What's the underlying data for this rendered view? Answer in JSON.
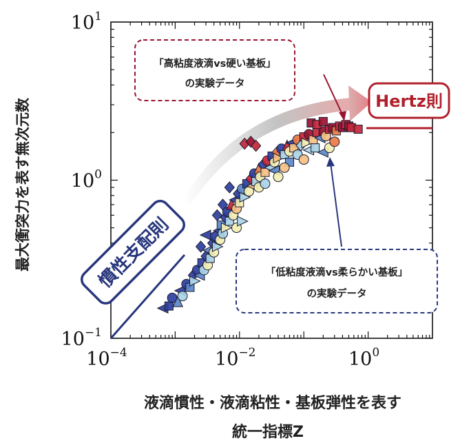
{
  "chart_data": {
    "type": "scatter",
    "xlabel_line1": "液滴慣性・液滴粘性・基板弾性を表す",
    "xlabel_line2": "統一指標Z",
    "ylabel": "最大衝突力を表す無次元数",
    "xscale": "log",
    "yscale": "log",
    "xlim": [
      0.0001,
      10
    ],
    "ylim": [
      0.1,
      10
    ],
    "x_ticks": [
      {
        "value": 0.0001,
        "base": "10",
        "exp": "−4"
      },
      {
        "value": 0.01,
        "base": "10",
        "exp": "−2"
      },
      {
        "value": 1,
        "base": "10",
        "exp": "0"
      }
    ],
    "y_ticks": [
      {
        "value": 0.1,
        "base": "10",
        "exp": "−1"
      },
      {
        "value": 1,
        "base": "10",
        "exp": "0"
      },
      {
        "value": 10,
        "base": "10",
        "exp": "1"
      }
    ],
    "legend": "none",
    "colors": {
      "dark_blue": "#2e3f9e",
      "mid_blue": "#5b88c9",
      "light_blue": "#a9d3e6",
      "pale_yellow": "#f3efb4",
      "light_orange": "#f6c184",
      "orange": "#ea7a45",
      "red": "#c4273a",
      "dark_red": "#9a1230"
    },
    "annotations": {
      "hertz_label": "Hertz則",
      "inertia_label": "慣性支配則",
      "top_box_line1": "「高粘度液滴vs硬い基板」",
      "top_box_line2": "の実験データ",
      "bottom_box_line1": "「低粘度液滴vs柔らかい基板」",
      "bottom_box_line2": "の実験データ"
    },
    "points": [
      {
        "x": 0.00065,
        "y": 0.155,
        "c": "dark_blue",
        "m": "tri_left"
      },
      {
        "x": 0.0008,
        "y": 0.16,
        "c": "dark_blue",
        "m": "square"
      },
      {
        "x": 0.0009,
        "y": 0.18,
        "c": "dark_blue",
        "m": "circle"
      },
      {
        "x": 0.0011,
        "y": 0.17,
        "c": "mid_blue",
        "m": "tri_up"
      },
      {
        "x": 0.0012,
        "y": 0.2,
        "c": "dark_blue",
        "m": "tri_left"
      },
      {
        "x": 0.0013,
        "y": 0.185,
        "c": "light_blue",
        "m": "circle"
      },
      {
        "x": 0.0015,
        "y": 0.22,
        "c": "dark_blue",
        "m": "circle"
      },
      {
        "x": 0.0017,
        "y": 0.21,
        "c": "mid_blue",
        "m": "square"
      },
      {
        "x": 0.0019,
        "y": 0.25,
        "c": "dark_blue",
        "m": "diamond"
      },
      {
        "x": 0.002,
        "y": 0.23,
        "c": "light_blue",
        "m": "tri_right"
      },
      {
        "x": 0.0022,
        "y": 0.27,
        "c": "dark_blue",
        "m": "circle"
      },
      {
        "x": 0.0024,
        "y": 0.25,
        "c": "mid_blue",
        "m": "tri_left"
      },
      {
        "x": 0.0026,
        "y": 0.3,
        "c": "dark_blue",
        "m": "square"
      },
      {
        "x": 0.0028,
        "y": 0.27,
        "c": "light_blue",
        "m": "circle"
      },
      {
        "x": 0.003,
        "y": 0.33,
        "c": "dark_blue",
        "m": "diamond"
      },
      {
        "x": 0.0032,
        "y": 0.29,
        "c": "pale_yellow",
        "m": "circle"
      },
      {
        "x": 0.0033,
        "y": 0.36,
        "c": "mid_blue",
        "m": "tri_left"
      },
      {
        "x": 0.0035,
        "y": 0.32,
        "c": "light_blue",
        "m": "square"
      },
      {
        "x": 0.0038,
        "y": 0.4,
        "c": "dark_blue",
        "m": "diamond"
      },
      {
        "x": 0.004,
        "y": 0.35,
        "c": "pale_yellow",
        "m": "circle"
      },
      {
        "x": 0.0042,
        "y": 0.44,
        "c": "dark_blue",
        "m": "circle"
      },
      {
        "x": 0.0045,
        "y": 0.38,
        "c": "light_blue",
        "m": "tri_right"
      },
      {
        "x": 0.0048,
        "y": 0.48,
        "c": "dark_blue",
        "m": "tri_left"
      },
      {
        "x": 0.005,
        "y": 0.42,
        "c": "pale_yellow",
        "m": "circle"
      },
      {
        "x": 0.0052,
        "y": 0.52,
        "c": "mid_blue",
        "m": "square"
      },
      {
        "x": 0.0055,
        "y": 0.46,
        "c": "light_blue",
        "m": "circle"
      },
      {
        "x": 0.006,
        "y": 0.58,
        "c": "dark_blue",
        "m": "diamond"
      },
      {
        "x": 0.0062,
        "y": 0.5,
        "c": "pale_yellow",
        "m": "tri_right"
      },
      {
        "x": 0.0065,
        "y": 0.63,
        "c": "dark_blue",
        "m": "circle"
      },
      {
        "x": 0.007,
        "y": 0.55,
        "c": "light_blue",
        "m": "square"
      },
      {
        "x": 0.0075,
        "y": 0.7,
        "c": "red",
        "m": "tri_up"
      },
      {
        "x": 0.008,
        "y": 0.6,
        "c": "pale_yellow",
        "m": "circle"
      },
      {
        "x": 0.0085,
        "y": 0.75,
        "c": "dark_blue",
        "m": "tri_left"
      },
      {
        "x": 0.009,
        "y": 0.66,
        "c": "light_orange",
        "m": "circle"
      },
      {
        "x": 0.0095,
        "y": 0.82,
        "c": "dark_blue",
        "m": "diamond"
      },
      {
        "x": 0.01,
        "y": 0.72,
        "c": "pale_yellow",
        "m": "square"
      },
      {
        "x": 0.011,
        "y": 0.88,
        "c": "mid_blue",
        "m": "circle"
      },
      {
        "x": 0.012,
        "y": 0.78,
        "c": "light_blue",
        "m": "tri_right"
      },
      {
        "x": 0.013,
        "y": 0.95,
        "c": "dark_blue",
        "m": "square"
      },
      {
        "x": 0.014,
        "y": 0.85,
        "c": "pale_yellow",
        "m": "circle"
      },
      {
        "x": 0.015,
        "y": 1.02,
        "c": "red",
        "m": "diamond"
      },
      {
        "x": 0.016,
        "y": 0.92,
        "c": "light_orange",
        "m": "tri_left"
      },
      {
        "x": 0.017,
        "y": 1.1,
        "c": "dark_blue",
        "m": "circle"
      },
      {
        "x": 0.018,
        "y": 0.98,
        "c": "light_blue",
        "m": "square"
      },
      {
        "x": 0.02,
        "y": 1.18,
        "c": "orange",
        "m": "tri_up"
      },
      {
        "x": 0.021,
        "y": 1.05,
        "c": "pale_yellow",
        "m": "circle"
      },
      {
        "x": 0.023,
        "y": 1.25,
        "c": "dark_blue",
        "m": "diamond"
      },
      {
        "x": 0.025,
        "y": 1.12,
        "c": "light_orange",
        "m": "square"
      },
      {
        "x": 0.027,
        "y": 1.33,
        "c": "red",
        "m": "circle"
      },
      {
        "x": 0.03,
        "y": 1.2,
        "c": "light_blue",
        "m": "tri_left"
      },
      {
        "x": 0.032,
        "y": 1.42,
        "c": "dark_blue",
        "m": "square"
      },
      {
        "x": 0.035,
        "y": 1.3,
        "c": "pale_yellow",
        "m": "circle"
      },
      {
        "x": 0.038,
        "y": 1.5,
        "c": "orange",
        "m": "diamond"
      },
      {
        "x": 0.04,
        "y": 1.38,
        "c": "light_orange",
        "m": "tri_right"
      },
      {
        "x": 0.045,
        "y": 1.58,
        "c": "dark_blue",
        "m": "circle"
      },
      {
        "x": 0.05,
        "y": 1.45,
        "c": "light_blue",
        "m": "square"
      },
      {
        "x": 0.055,
        "y": 1.65,
        "c": "red",
        "m": "tri_up"
      },
      {
        "x": 0.06,
        "y": 1.52,
        "c": "pale_yellow",
        "m": "circle"
      },
      {
        "x": 0.065,
        "y": 1.72,
        "c": "dark_blue",
        "m": "tri_left"
      },
      {
        "x": 0.07,
        "y": 1.6,
        "c": "light_orange",
        "m": "square"
      },
      {
        "x": 0.08,
        "y": 1.8,
        "c": "orange",
        "m": "circle"
      },
      {
        "x": 0.09,
        "y": 1.66,
        "c": "light_blue",
        "m": "diamond"
      },
      {
        "x": 0.1,
        "y": 1.88,
        "c": "red",
        "m": "square"
      },
      {
        "x": 0.11,
        "y": 1.72,
        "c": "pale_yellow",
        "m": "tri_right"
      },
      {
        "x": 0.12,
        "y": 1.95,
        "c": "dark_red",
        "m": "circle"
      },
      {
        "x": 0.14,
        "y": 1.8,
        "c": "light_orange",
        "m": "square"
      },
      {
        "x": 0.16,
        "y": 2.0,
        "c": "red",
        "m": "square"
      },
      {
        "x": 0.18,
        "y": 1.85,
        "c": "mid_blue",
        "m": "tri_left"
      },
      {
        "x": 0.2,
        "y": 2.05,
        "c": "dark_red",
        "m": "square"
      },
      {
        "x": 0.22,
        "y": 1.9,
        "c": "light_orange",
        "m": "circle"
      },
      {
        "x": 0.25,
        "y": 2.1,
        "c": "red",
        "m": "square"
      },
      {
        "x": 0.28,
        "y": 2.15,
        "c": "dark_red",
        "m": "square"
      },
      {
        "x": 0.32,
        "y": 2.05,
        "c": "orange",
        "m": "square"
      },
      {
        "x": 0.36,
        "y": 2.2,
        "c": "red",
        "m": "square"
      },
      {
        "x": 0.4,
        "y": 2.15,
        "c": "dark_red",
        "m": "square"
      },
      {
        "x": 0.45,
        "y": 2.25,
        "c": "red",
        "m": "square"
      },
      {
        "x": 0.5,
        "y": 2.2,
        "c": "dark_red",
        "m": "square"
      },
      {
        "x": 0.55,
        "y": 2.15,
        "c": "red",
        "m": "square"
      },
      {
        "x": 0.7,
        "y": 2.1,
        "c": "red",
        "m": "square"
      },
      {
        "x": 0.13,
        "y": 2.3,
        "c": "dark_red",
        "m": "square"
      },
      {
        "x": 0.16,
        "y": 2.25,
        "c": "red",
        "m": "square"
      },
      {
        "x": 0.2,
        "y": 2.35,
        "c": "dark_red",
        "m": "square"
      },
      {
        "x": 0.012,
        "y": 1.7,
        "c": "red",
        "m": "diamond"
      },
      {
        "x": 0.015,
        "y": 1.75,
        "c": "dark_red",
        "m": "diamond"
      },
      {
        "x": 0.018,
        "y": 1.65,
        "c": "red",
        "m": "diamond"
      },
      {
        "x": 0.035,
        "y": 1.15,
        "c": "mid_blue",
        "m": "tri_left"
      },
      {
        "x": 0.06,
        "y": 1.3,
        "c": "mid_blue",
        "m": "square"
      },
      {
        "x": 0.08,
        "y": 1.45,
        "c": "light_blue",
        "m": "circle"
      },
      {
        "x": 0.12,
        "y": 1.55,
        "c": "light_blue",
        "m": "tri_left"
      },
      {
        "x": 0.15,
        "y": 1.6,
        "c": "light_blue",
        "m": "square"
      },
      {
        "x": 0.2,
        "y": 1.5,
        "c": "mid_blue",
        "m": "tri_left"
      },
      {
        "x": 0.25,
        "y": 1.6,
        "c": "pale_yellow",
        "m": "circle"
      },
      {
        "x": 0.0045,
        "y": 0.6,
        "c": "dark_blue",
        "m": "diamond"
      },
      {
        "x": 0.0055,
        "y": 0.7,
        "c": "dark_blue",
        "m": "diamond"
      },
      {
        "x": 0.007,
        "y": 0.9,
        "c": "dark_blue",
        "m": "diamond"
      },
      {
        "x": 0.02,
        "y": 0.9,
        "c": "pale_yellow",
        "m": "circle"
      },
      {
        "x": 0.025,
        "y": 0.95,
        "c": "light_blue",
        "m": "circle"
      },
      {
        "x": 0.04,
        "y": 1.05,
        "c": "pale_yellow",
        "m": "circle"
      },
      {
        "x": 0.05,
        "y": 1.2,
        "c": "light_orange",
        "m": "circle"
      },
      {
        "x": 0.0025,
        "y": 0.38,
        "c": "dark_blue",
        "m": "diamond"
      },
      {
        "x": 0.003,
        "y": 0.45,
        "c": "dark_blue",
        "m": "tri_left"
      },
      {
        "x": 0.009,
        "y": 0.5,
        "c": "pale_yellow",
        "m": "circle"
      },
      {
        "x": 0.011,
        "y": 0.55,
        "c": "light_blue",
        "m": "tri_right"
      },
      {
        "x": 0.1,
        "y": 1.35,
        "c": "light_orange",
        "m": "circle"
      },
      {
        "x": 0.3,
        "y": 1.75,
        "c": "orange",
        "m": "circle"
      }
    ]
  }
}
